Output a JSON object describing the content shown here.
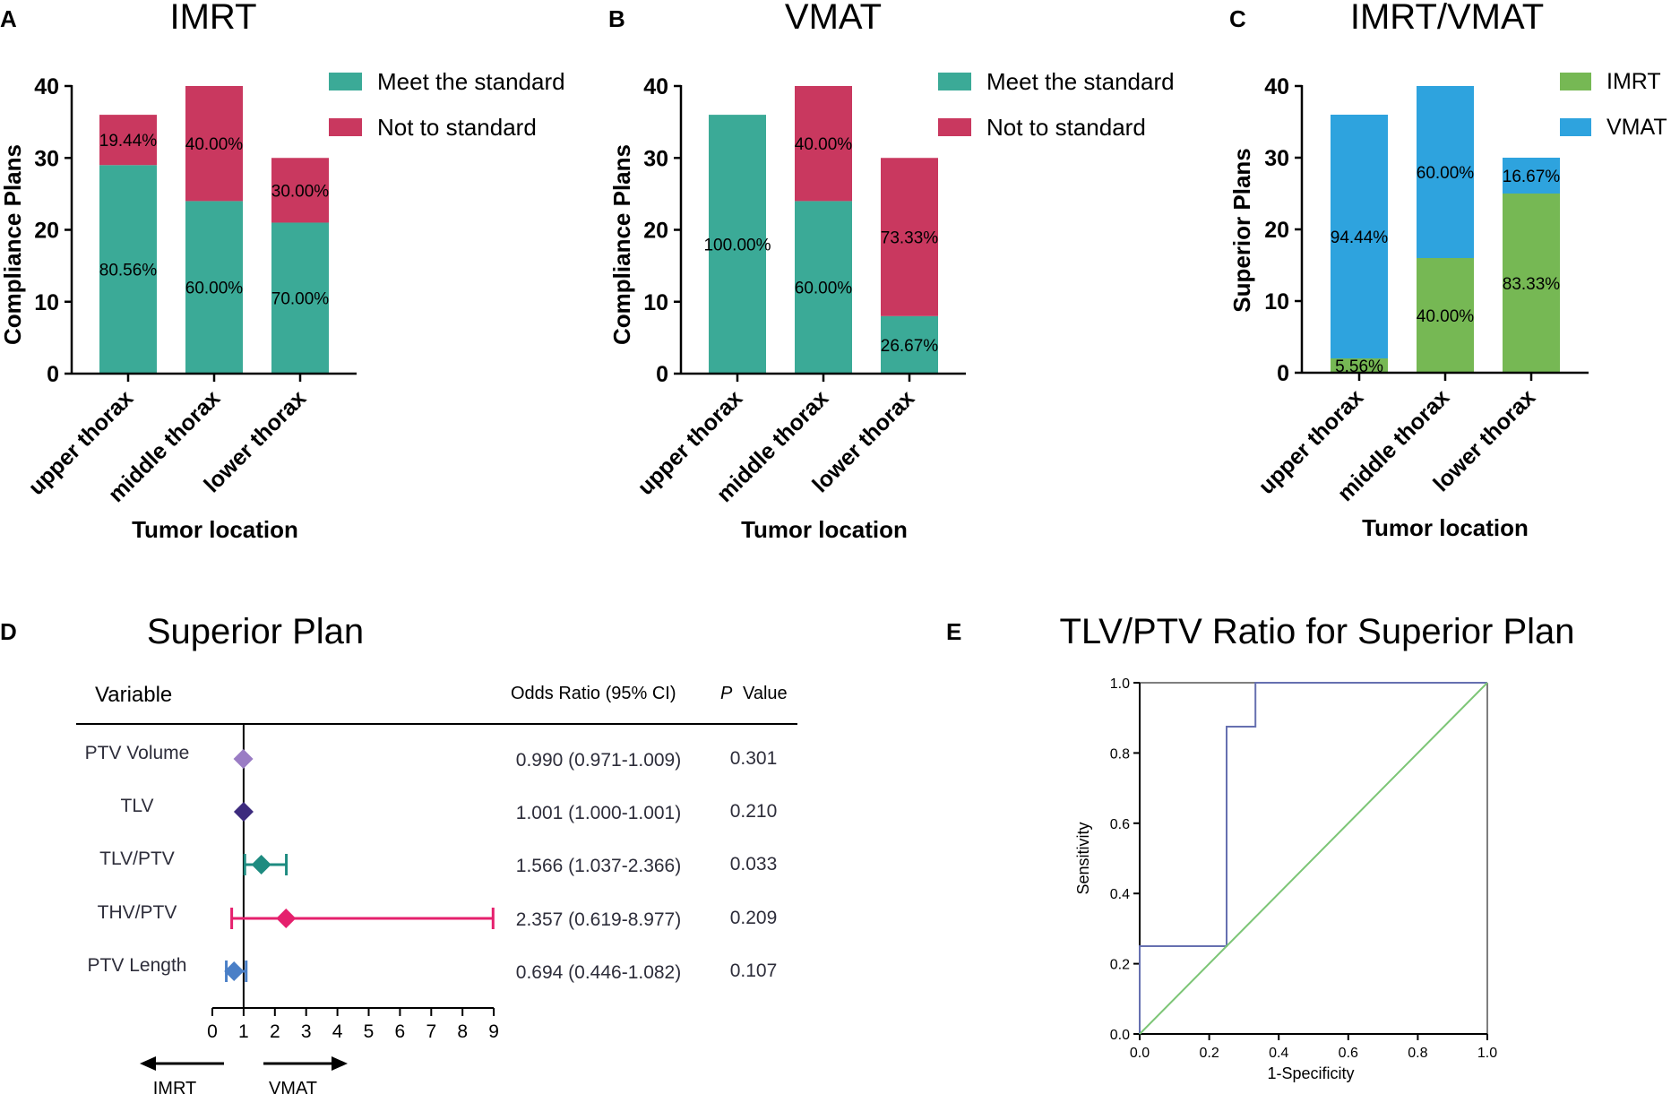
{
  "colors": {
    "meet": "#3BAA97",
    "not": "#C9385F",
    "imrt": "#76B854",
    "vmat": "#2EA3DE",
    "axis": "#000000",
    "forest_colors": [
      "#9A7CC4",
      "#3D2B7E",
      "#1E8B80",
      "#E5206D",
      "#4A7FC7"
    ],
    "roc_curve": "#6670B0",
    "roc_ref": "#7CC576"
  },
  "chart_data": [
    {
      "type": "bar",
      "stacked": true,
      "panel": "A",
      "title": "IMRT",
      "xlabel": "Tumor location",
      "ylabel": "Compliance Plans",
      "ylim": [
        0,
        40
      ],
      "yticks": [
        "0",
        "10",
        "20",
        "30",
        "40"
      ],
      "categories": [
        "upper thorax",
        "middle thorax",
        "lower thorax"
      ],
      "series": [
        {
          "name": "Meet the standard",
          "color_key": "meet",
          "values": [
            29,
            24,
            21
          ],
          "labels": [
            "80.56%",
            "60.00%",
            "70.00%"
          ]
        },
        {
          "name": "Not to standard",
          "color_key": "not",
          "values": [
            7,
            16,
            9
          ],
          "labels": [
            "19.44%",
            "40.00%",
            "30.00%"
          ]
        }
      ]
    },
    {
      "type": "bar",
      "stacked": true,
      "panel": "B",
      "title": "VMAT",
      "xlabel": "Tumor location",
      "ylabel": "Compliance Plans",
      "ylim": [
        0,
        40
      ],
      "yticks": [
        "0",
        "10",
        "20",
        "30",
        "40"
      ],
      "categories": [
        "upper thorax",
        "middle thorax",
        "lower thorax"
      ],
      "series": [
        {
          "name": "Meet the standard",
          "color_key": "meet",
          "values": [
            36,
            24,
            8
          ],
          "labels": [
            "100.00%",
            "60.00%",
            "26.67%"
          ]
        },
        {
          "name": "Not to standard",
          "color_key": "not",
          "values": [
            0,
            16,
            22
          ],
          "labels": [
            "",
            "40.00%",
            "73.33%"
          ]
        }
      ]
    },
    {
      "type": "bar",
      "stacked": true,
      "panel": "C",
      "title": "IMRT/VMAT",
      "xlabel": "Tumor location",
      "ylabel": "Superior Plans",
      "ylim": [
        0,
        40
      ],
      "yticks": [
        "0",
        "10",
        "20",
        "30",
        "40"
      ],
      "categories": [
        "upper thorax",
        "middle thorax",
        "lower thorax"
      ],
      "series": [
        {
          "name": "IMRT",
          "color_key": "imrt",
          "values": [
            2,
            16,
            25
          ],
          "labels": [
            "5.56%",
            "40.00%",
            "83.33%"
          ]
        },
        {
          "name": "VMAT",
          "color_key": "vmat",
          "values": [
            34,
            24,
            5
          ],
          "labels": [
            "94.44%",
            "60.00%",
            "16.67%"
          ]
        }
      ]
    },
    {
      "type": "forest",
      "panel": "D",
      "title": "Superior Plan",
      "col_variable": "Variable",
      "col_or": "Odds Ratio (95% CI)",
      "col_p_italic": "P",
      "col_p_rest": "Value",
      "xlim": [
        0,
        9
      ],
      "xticks": [
        "0",
        "1",
        "2",
        "3",
        "4",
        "5",
        "6",
        "7",
        "8",
        "9"
      ],
      "reference": 1,
      "left_arrow": "IMRT",
      "right_arrow": "VMAT",
      "rows": [
        {
          "name": "PTV Volume",
          "or": 0.99,
          "lo": 0.971,
          "hi": 1.009,
          "ci_text": "0.990 (0.971-1.009)",
          "p": "0.301"
        },
        {
          "name": "TLV",
          "or": 1.001,
          "lo": 1.0,
          "hi": 1.001,
          "ci_text": "1.001 (1.000-1.001)",
          "p": "0.210"
        },
        {
          "name": "TLV/PTV",
          "or": 1.566,
          "lo": 1.037,
          "hi": 2.366,
          "ci_text": "1.566 (1.037-2.366)",
          "p": "0.033"
        },
        {
          "name": "THV/PTV",
          "or": 2.357,
          "lo": 0.619,
          "hi": 8.977,
          "ci_text": "2.357 (0.619-8.977)",
          "p": "0.209"
        },
        {
          "name": "PTV Length",
          "or": 0.694,
          "lo": 0.446,
          "hi": 1.082,
          "ci_text": "0.694 (0.446-1.082)",
          "p": "0.107"
        }
      ]
    },
    {
      "type": "line",
      "panel": "E",
      "title": "TLV/PTV Ratio for Superior Plan",
      "xlabel": "1-Specificity",
      "ylabel": "Sensitivity",
      "xlim": [
        0,
        1
      ],
      "ylim": [
        0,
        1
      ],
      "xticks": [
        "0.0",
        "0.2",
        "0.4",
        "0.6",
        "0.8",
        "1.0"
      ],
      "yticks": [
        "0.0",
        "0.2",
        "0.4",
        "0.6",
        "0.8",
        "1.0"
      ],
      "series": [
        {
          "name": "ROC",
          "color_key": "roc_curve",
          "x": [
            0,
            0,
            0.25,
            0.25,
            0.333,
            0.333,
            1.0
          ],
          "y": [
            0,
            0.25,
            0.25,
            0.875,
            0.875,
            1.0,
            1.0
          ]
        },
        {
          "name": "Reference",
          "color_key": "roc_ref",
          "x": [
            0,
            1
          ],
          "y": [
            0,
            1
          ]
        }
      ]
    }
  ]
}
